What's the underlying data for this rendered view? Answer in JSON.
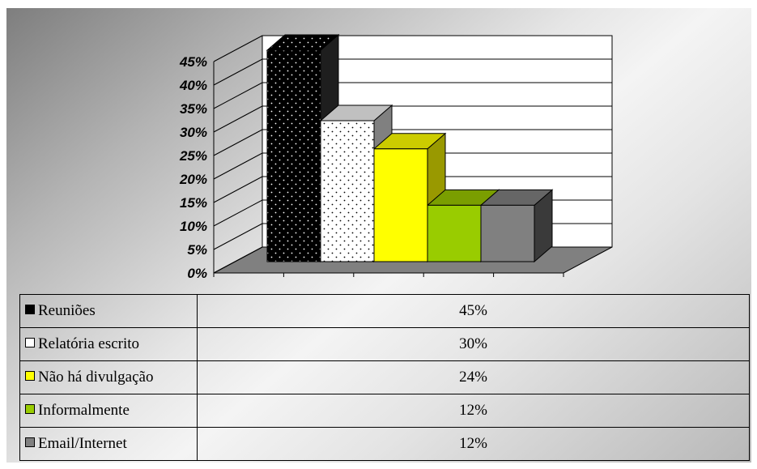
{
  "chart_data": {
    "type": "bar",
    "categories": [
      "Reuniões",
      "Relatória escrito",
      "Não há divulgação",
      "Informalmente",
      "Email/Internet"
    ],
    "values": [
      45,
      30,
      24,
      12,
      12
    ],
    "value_labels": [
      "45%",
      "30%",
      "24%",
      "12%",
      "12%"
    ],
    "y_ticks": [
      "0%",
      "5%",
      "10%",
      "15%",
      "20%",
      "25%",
      "30%",
      "35%",
      "40%",
      "45%"
    ],
    "ylim": [
      0,
      45
    ],
    "unit": "%",
    "grid": true,
    "three_d": true,
    "colors": [
      "#000000",
      "#ffffff",
      "#ffff00",
      "#99cc00",
      "#808080"
    ],
    "side_colors": [
      "#1e1e1e",
      "#808080",
      "#999900",
      "#5c7a00",
      "#3a3a3a"
    ],
    "top_colors": [
      "#1a1a1a",
      "#c0c0c0",
      "#cccc00",
      "#7a9e00",
      "#666666"
    ],
    "dotted": [
      true,
      true,
      false,
      false,
      false
    ],
    "data_table": true
  }
}
